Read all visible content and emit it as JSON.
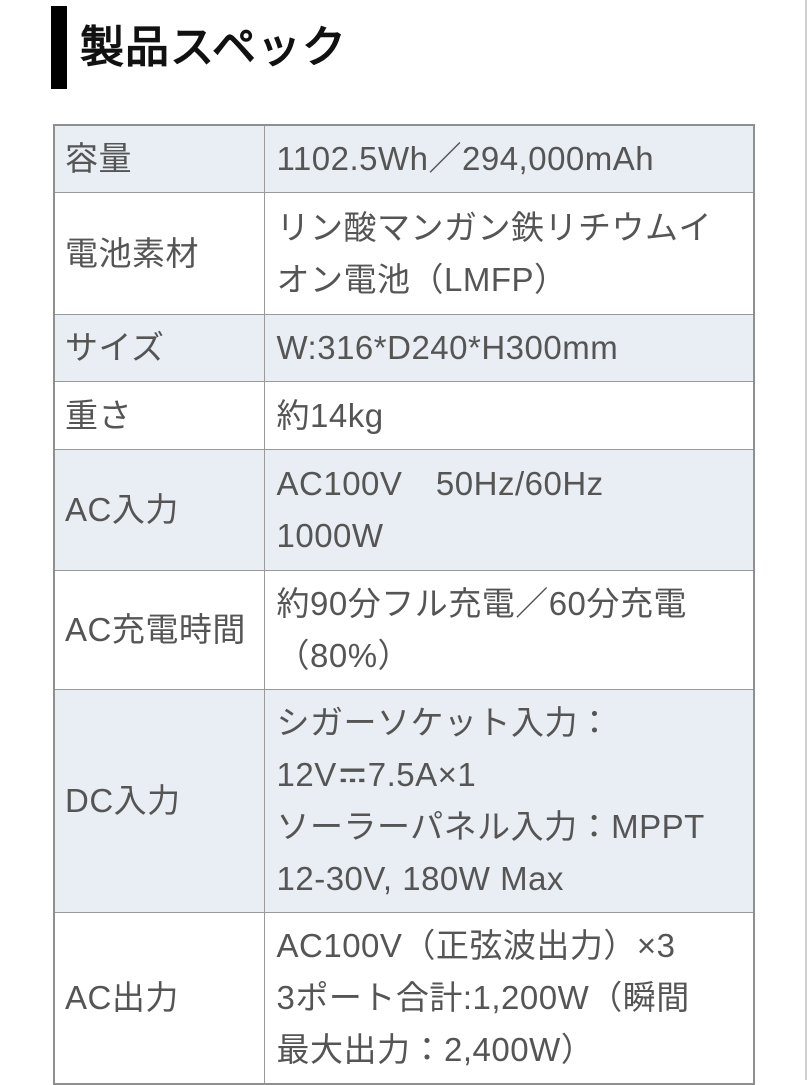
{
  "header": {
    "title": "製品スペック"
  },
  "table": {
    "rows": [
      {
        "label": "容量",
        "value": "1102.5Wh／294,000mAh"
      },
      {
        "label": "電池素材",
        "value": "リン酸マンガン鉄リチウムイ\nオン電池（LMFP）"
      },
      {
        "label": "サイズ",
        "value": "W:316*D240*H300mm"
      },
      {
        "label": "重さ",
        "value": "約14kg"
      },
      {
        "label": "AC入力",
        "value": "AC100V　50Hz/60Hz\n1000W"
      },
      {
        "label": "AC充電時間",
        "value": "約90分フル充電／60分充電\n（80%）"
      },
      {
        "label": "DC入力",
        "value": "シガーソケット入力：\n12V⎓7.5A×1\nソーラーパネル入力：MPPT\n12-30V, 180W Max"
      },
      {
        "label": "AC出力",
        "value": "AC100V（正弦波出力）×3\n3ポート合計:1,200W（瞬間\n最大出力：2,400W）"
      }
    ]
  },
  "colors": {
    "accent_bar": "#000000",
    "header_text": "#111111",
    "cell_text": "#555555",
    "row_alt_bg": "#e9eef4",
    "row_bg": "#ffffff",
    "border_outer": "#8f8f8f",
    "border_inner": "#9a9a9a",
    "edge_line": "#cfcfcf"
  }
}
